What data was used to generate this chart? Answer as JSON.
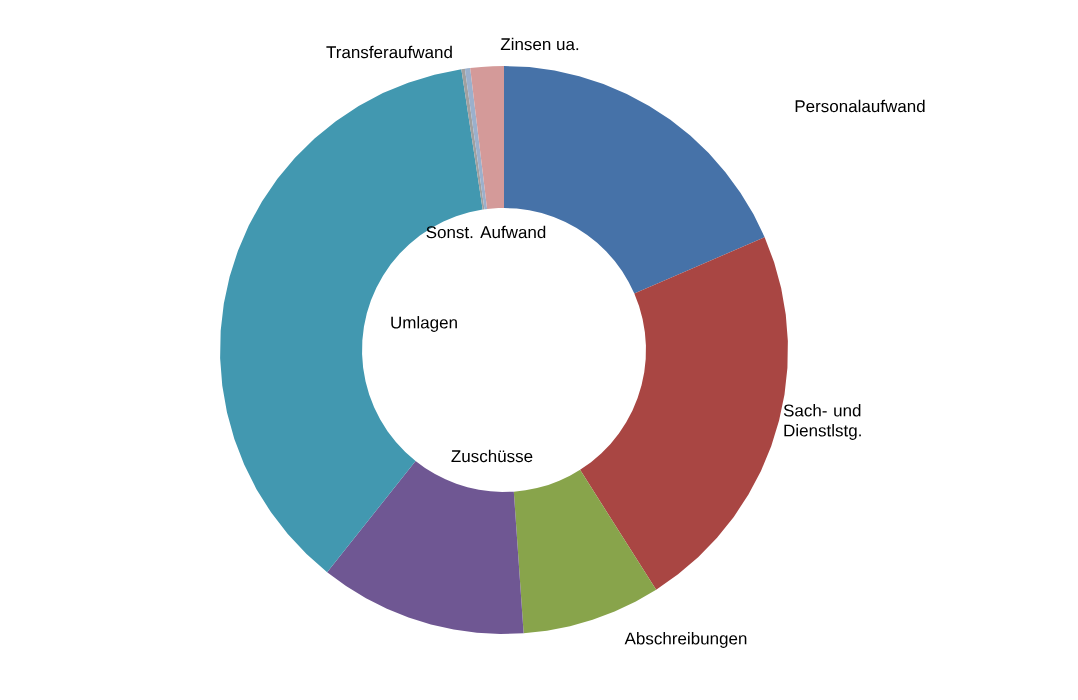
{
  "chart_data": {
    "type": "donut",
    "categories": [
      "Personalaufwand",
      "Sach- und Dienstlstg.",
      "Abschreibungen",
      "Zuschüsse",
      "Umlagen",
      "Sonst. Aufwand",
      "Transferaufwand",
      "Zinsen ua."
    ],
    "values": [
      18.5,
      22.5,
      7.9,
      11.8,
      36.9,
      0.2,
      0.3,
      1.9
    ],
    "colors": [
      "#4672a8",
      "#a94643",
      "#88a44b",
      "#6f5793",
      "#4298b0",
      "#a0a0a0",
      "#9bb0cc",
      "#d49a99"
    ]
  }
}
